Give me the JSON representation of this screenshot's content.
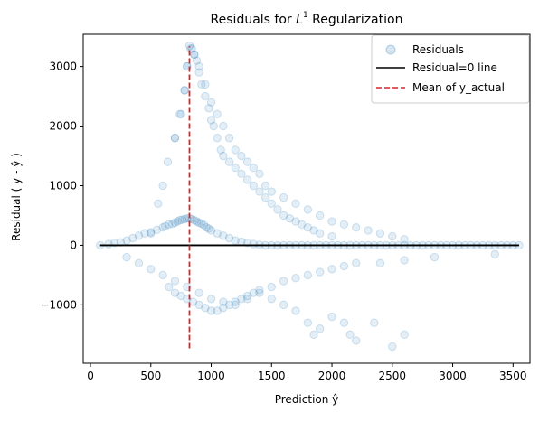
{
  "chart_data": {
    "type": "scatter",
    "title_prefix": "Residuals for ",
    "title_math_base": "L",
    "title_math_sup": "1",
    "title_suffix": " Regularization",
    "xlabel": "Prediction ŷ",
    "ylabel": "Residual ( y - ŷ )",
    "xlim": [
      -60,
      3640
    ],
    "ylim": [
      -1980,
      3540
    ],
    "xticks": [
      0,
      500,
      1000,
      1500,
      2000,
      2500,
      3000,
      3500
    ],
    "yticks": [
      -1000,
      0,
      1000,
      2000,
      3000
    ],
    "xtick_labels": [
      "0",
      "500",
      "1000",
      "1500",
      "2000",
      "2500",
      "3000",
      "3500"
    ],
    "ytick_labels": [
      "−1000",
      "0",
      "1000",
      "2000",
      "3000"
    ],
    "legend_position": "top-right",
    "legend": [
      {
        "label": "Residuals",
        "kind": "scatter",
        "color": "#1f77b4"
      },
      {
        "label": "Residual=0 line",
        "kind": "line",
        "color": "#000000"
      },
      {
        "label": "Mean of y_actual",
        "kind": "dashed-line",
        "color": "#d62728"
      }
    ],
    "series": [
      {
        "name": "Residuals",
        "color": "#1f77b4",
        "alpha": 0.12,
        "x": [
          80,
          150,
          200,
          250,
          300,
          350,
          400,
          450,
          500,
          550,
          600,
          620,
          650,
          680,
          700,
          720,
          740,
          760,
          780,
          800,
          820,
          840,
          860,
          880,
          900,
          920,
          940,
          960,
          980,
          1000,
          1050,
          1100,
          1150,
          1200,
          1250,
          1300,
          1350,
          1400,
          1450,
          1500,
          1550,
          1600,
          1650,
          1700,
          1750,
          1800,
          1850,
          1900,
          1950,
          2000,
          2050,
          2100,
          2150,
          2200,
          2250,
          2300,
          2350,
          2400,
          2450,
          2500,
          2550,
          2600,
          2650,
          2700,
          2750,
          2800,
          2850,
          2900,
          2950,
          3000,
          3050,
          3100,
          3150,
          3200,
          3250,
          3300,
          3350,
          3400,
          3450,
          3500,
          3550,
          300,
          400,
          500,
          600,
          700,
          800,
          900,
          1000,
          1100,
          1200,
          1300,
          1400,
          1500,
          1600,
          1700,
          1800,
          1900,
          2000,
          2100,
          2200,
          2400,
          2600,
          2850,
          3350,
          500,
          560,
          600,
          640,
          700,
          740,
          780,
          800,
          830,
          860,
          900,
          950,
          1000,
          1050,
          1100,
          1150,
          1200,
          1250,
          1300,
          1350,
          1400,
          1450,
          1500,
          1600,
          1700,
          1800,
          1900,
          2000,
          2100,
          2200,
          2300,
          2400,
          2500,
          2600,
          650,
          700,
          750,
          800,
          850,
          900,
          950,
          1000,
          1050,
          1100,
          1150,
          1200,
          1250,
          1300,
          1350,
          1400,
          1500,
          1600,
          1700,
          1800,
          1850,
          1900,
          2000,
          2100,
          2150,
          2200,
          2350,
          2500,
          2600,
          700,
          750,
          780,
          800,
          820,
          840,
          860,
          880,
          900,
          920,
          950,
          980,
          1000,
          1020,
          1050,
          1080,
          1100,
          1150,
          1200,
          1250,
          1300,
          1350,
          1400,
          1450,
          1500,
          1550,
          1600,
          1650,
          1700,
          1750,
          1800,
          1850,
          1900,
          2000
        ],
        "y": [
          0,
          20,
          40,
          50,
          80,
          120,
          160,
          200,
          220,
          260,
          300,
          320,
          350,
          360,
          380,
          400,
          420,
          430,
          440,
          450,
          450,
          440,
          420,
          400,
          380,
          360,
          340,
          300,
          280,
          250,
          200,
          160,
          120,
          80,
          60,
          40,
          20,
          10,
          0,
          0,
          0,
          0,
          0,
          0,
          0,
          0,
          0,
          0,
          0,
          0,
          0,
          0,
          0,
          0,
          0,
          0,
          0,
          0,
          0,
          0,
          0,
          0,
          0,
          0,
          0,
          0,
          0,
          0,
          0,
          0,
          0,
          0,
          0,
          0,
          0,
          0,
          0,
          0,
          0,
          0,
          0,
          -200,
          -300,
          -400,
          -500,
          -600,
          -700,
          -800,
          -900,
          -950,
          -1000,
          -900,
          -800,
          -700,
          -600,
          -550,
          -500,
          -450,
          -400,
          -350,
          -300,
          -300,
          -250,
          -200,
          -150,
          200,
          700,
          1000,
          1400,
          1800,
          2200,
          2600,
          3000,
          3300,
          3200,
          3000,
          2700,
          2400,
          2200,
          2000,
          1800,
          1600,
          1500,
          1400,
          1300,
          1200,
          1000,
          900,
          800,
          700,
          600,
          500,
          400,
          350,
          300,
          250,
          200,
          150,
          100,
          -700,
          -800,
          -850,
          -900,
          -950,
          -1000,
          -1050,
          -1100,
          -1100,
          -1050,
          -1000,
          -950,
          -900,
          -850,
          -800,
          -750,
          -900,
          -1000,
          -1100,
          -1300,
          -1500,
          -1400,
          -1200,
          -1300,
          -1500,
          -1600,
          -1300,
          -1700,
          -1500,
          1800,
          2200,
          2600,
          3000,
          3350,
          3300,
          3200,
          3100,
          2900,
          2700,
          2500,
          2300,
          2100,
          2000,
          1800,
          1600,
          1500,
          1400,
          1300,
          1200,
          1100,
          1000,
          900,
          800,
          700,
          600,
          500,
          450,
          400,
          350,
          300,
          250,
          200,
          150
        ]
      }
    ],
    "hlines": [
      {
        "name": "Residual=0 line",
        "y": 0,
        "x_from": 80,
        "x_to": 3550,
        "color": "#000000"
      }
    ],
    "vlines": [
      {
        "name": "Mean of y_actual",
        "x": 820,
        "y_from": -1730,
        "y_to": 3340,
        "color": "#d62728",
        "dashed": true
      }
    ]
  }
}
